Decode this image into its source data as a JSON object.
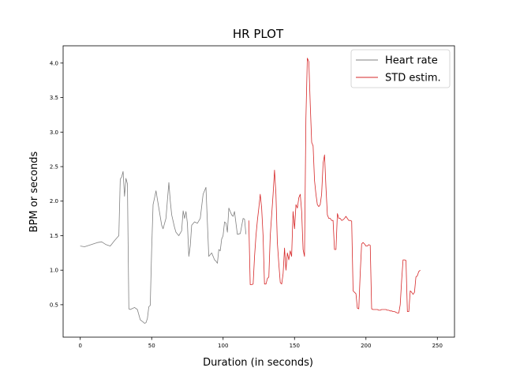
{
  "chart_data": {
    "type": "line",
    "title": "HR PLOT",
    "xlabel": "Duration (in seconds)",
    "ylabel": "BPM or seconds",
    "xlim": [
      -12,
      262
    ],
    "ylim": [
      0.03,
      4.25
    ],
    "xticks": [
      0,
      50,
      100,
      150,
      200,
      250
    ],
    "yticks": [
      0.5,
      1.0,
      1.5,
      2.0,
      2.5,
      3.0,
      3.5,
      4.0
    ],
    "grid": false,
    "legend_position": "top-right",
    "series": [
      {
        "name": "Heart rate",
        "color": "#808080",
        "x": [
          0,
          3,
          6,
          9,
          12,
          15,
          18,
          21,
          24,
          27,
          28,
          29,
          30,
          31,
          32,
          33,
          34,
          35,
          36,
          37,
          38,
          40,
          42,
          44,
          45,
          46,
          47,
          48,
          49,
          50,
          51,
          52,
          53,
          55,
          57,
          58,
          60,
          62,
          63,
          64,
          66,
          67,
          69,
          71,
          72,
          73,
          74,
          75,
          76,
          77,
          78,
          80,
          82,
          84,
          86,
          88,
          90,
          92,
          94,
          95,
          96,
          97,
          98,
          99,
          100,
          101,
          102,
          103,
          104,
          106,
          107,
          108,
          110,
          112,
          114,
          115,
          116
        ],
        "y": [
          1.35,
          1.34,
          1.36,
          1.38,
          1.4,
          1.41,
          1.37,
          1.35,
          1.43,
          1.5,
          2.32,
          2.35,
          2.43,
          2.07,
          2.33,
          2.25,
          0.44,
          0.43,
          0.44,
          0.45,
          0.46,
          0.43,
          0.28,
          0.25,
          0.23,
          0.24,
          0.3,
          0.47,
          0.49,
          1.3,
          1.95,
          2.05,
          2.15,
          1.9,
          1.65,
          1.6,
          1.75,
          2.27,
          2.0,
          1.8,
          1.62,
          1.55,
          1.5,
          1.57,
          1.86,
          1.75,
          1.85,
          1.68,
          1.2,
          1.35,
          1.65,
          1.7,
          1.68,
          1.75,
          2.1,
          2.2,
          1.2,
          1.25,
          1.15,
          1.13,
          1.1,
          1.3,
          1.28,
          1.45,
          1.5,
          1.7,
          1.68,
          1.55,
          1.9,
          1.8,
          1.78,
          1.85,
          1.52,
          1.53,
          1.75,
          1.74,
          1.52
        ]
      },
      {
        "name": "STD estim.",
        "color": "#d62728",
        "x": [
          118,
          119,
          120,
          121,
          122,
          123,
          124,
          125,
          126,
          127,
          128,
          129,
          130,
          131,
          132,
          133,
          134,
          135,
          136,
          137,
          138,
          139,
          140,
          141,
          142,
          143,
          144,
          145,
          146,
          147,
          148,
          149,
          150,
          151,
          152,
          153,
          154,
          155,
          156,
          157,
          158,
          159,
          160,
          161,
          162,
          163,
          164,
          165,
          166,
          167,
          168,
          169,
          170,
          171,
          172,
          173,
          174,
          175,
          176,
          177,
          178,
          179,
          180,
          181,
          182,
          183,
          184,
          185,
          186,
          187,
          188,
          189,
          190,
          191,
          192,
          193,
          194,
          195,
          196,
          197,
          198,
          199,
          200,
          201,
          202,
          203,
          204,
          205,
          206,
          207,
          208,
          209,
          210,
          211,
          212,
          213,
          214,
          215,
          216,
          217,
          218,
          219,
          220,
          221,
          222,
          223,
          224,
          225,
          226,
          227,
          228,
          229,
          230,
          231,
          232,
          233,
          234,
          235,
          236,
          237,
          238
        ],
        "y": [
          1.72,
          0.79,
          0.79,
          0.8,
          1.2,
          1.5,
          1.72,
          1.9,
          2.1,
          1.9,
          1.5,
          0.8,
          0.8,
          0.88,
          0.9,
          1.5,
          1.8,
          2.1,
          2.45,
          2.1,
          1.4,
          1.1,
          0.82,
          0.8,
          0.95,
          1.32,
          1.0,
          1.25,
          1.15,
          1.28,
          1.2,
          1.85,
          1.6,
          1.95,
          1.9,
          2.05,
          2.1,
          1.85,
          1.3,
          1.2,
          3.2,
          4.07,
          4.02,
          3.4,
          2.85,
          2.8,
          2.3,
          2.1,
          1.95,
          1.92,
          1.95,
          2.1,
          2.55,
          2.67,
          2.2,
          1.8,
          1.75,
          1.75,
          1.72,
          1.72,
          1.3,
          1.3,
          1.82,
          1.75,
          1.75,
          1.72,
          1.73,
          1.75,
          1.78,
          1.75,
          1.72,
          1.72,
          1.71,
          0.7,
          0.68,
          0.66,
          0.45,
          0.44,
          0.95,
          1.38,
          1.4,
          1.38,
          1.35,
          1.35,
          1.37,
          1.36,
          0.44,
          0.43,
          0.43,
          0.43,
          0.43,
          0.42,
          0.42,
          0.43,
          0.43,
          0.43,
          0.43,
          0.42,
          0.42,
          0.41,
          0.41,
          0.4,
          0.4,
          0.39,
          0.38,
          0.38,
          0.5,
          0.85,
          1.15,
          1.15,
          1.14,
          0.4,
          0.4,
          0.7,
          0.68,
          0.65,
          0.68,
          0.9,
          0.92,
          0.98,
          1.0
        ]
      }
    ]
  }
}
